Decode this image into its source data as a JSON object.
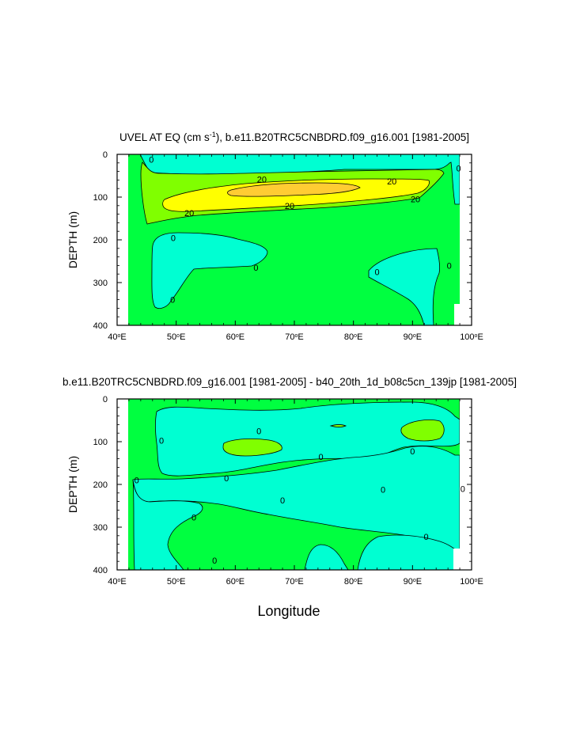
{
  "chart_data": [
    {
      "type": "contour",
      "title": "UVEL AT EQ (cm s⁻¹), b.e11.B20TRC5CNBDRD.f09_g16.001 [1981-2005]",
      "xlabel": "",
      "ylabel": "DEPTH (m)",
      "xlim": [
        40,
        100
      ],
      "ylim": [
        400,
        0
      ],
      "x_ticks": [
        "40°E",
        "50°E",
        "60°E",
        "70°E",
        "80°E",
        "90°E",
        "100°E"
      ],
      "y_ticks": [
        "0",
        "100",
        "200",
        "300",
        "400"
      ],
      "contour_labels": [
        {
          "text": "0",
          "lon": 45.8,
          "depth": 12
        },
        {
          "text": "0",
          "lon": 97.8,
          "depth": 32
        },
        {
          "text": "20",
          "lon": 64.5,
          "depth": 58
        },
        {
          "text": "20",
          "lon": 86.5,
          "depth": 63
        },
        {
          "text": "20",
          "lon": 69.2,
          "depth": 120
        },
        {
          "text": "20",
          "lon": 90.5,
          "depth": 105
        },
        {
          "text": "20",
          "lon": 52.2,
          "depth": 137
        },
        {
          "text": "0",
          "lon": 49.5,
          "depth": 195
        },
        {
          "text": "0",
          "lon": 63.5,
          "depth": 265
        },
        {
          "text": "0",
          "lon": 84.0,
          "depth": 275
        },
        {
          "text": "0",
          "lon": 96.2,
          "depth": 260
        },
        {
          "text": "0",
          "lon": 49.4,
          "depth": 340
        }
      ]
    },
    {
      "type": "contour",
      "title": "b.e11.B20TRC5CNBDRD.f09_g16.001 [1981-2005] - b40_20th_1d_b08c5cn_139jp [1981-2005]",
      "xlabel": "Longitude",
      "ylabel": "DEPTH (m)",
      "xlim": [
        40,
        100
      ],
      "ylim": [
        400,
        0
      ],
      "x_ticks": [
        "40°E",
        "50°E",
        "60°E",
        "70°E",
        "80°E",
        "90°E",
        "100°E"
      ],
      "y_ticks": [
        "0",
        "100",
        "200",
        "300",
        "400"
      ],
      "contour_labels": [
        {
          "text": "0",
          "lon": 64.0,
          "depth": 75
        },
        {
          "text": "0",
          "lon": 47.5,
          "depth": 97
        },
        {
          "text": "0",
          "lon": 90.0,
          "depth": 122
        },
        {
          "text": "0",
          "lon": 74.5,
          "depth": 135
        },
        {
          "text": "0",
          "lon": 58.5,
          "depth": 185
        },
        {
          "text": "0",
          "lon": 43.3,
          "depth": 190
        },
        {
          "text": "0",
          "lon": 85.0,
          "depth": 212
        },
        {
          "text": "0",
          "lon": 98.5,
          "depth": 210
        },
        {
          "text": "0",
          "lon": 68.0,
          "depth": 237
        },
        {
          "text": "0",
          "lon": 53.0,
          "depth": 277
        },
        {
          "text": "0",
          "lon": 92.3,
          "depth": 322
        },
        {
          "text": "0",
          "lon": 56.5,
          "depth": 378
        }
      ]
    }
  ],
  "colors": {
    "green": "#00ff40",
    "cyan": "#00ffd2",
    "yellow_green": "#80ff00",
    "yellow": "#ffff00",
    "orange": "#ffcc33"
  }
}
